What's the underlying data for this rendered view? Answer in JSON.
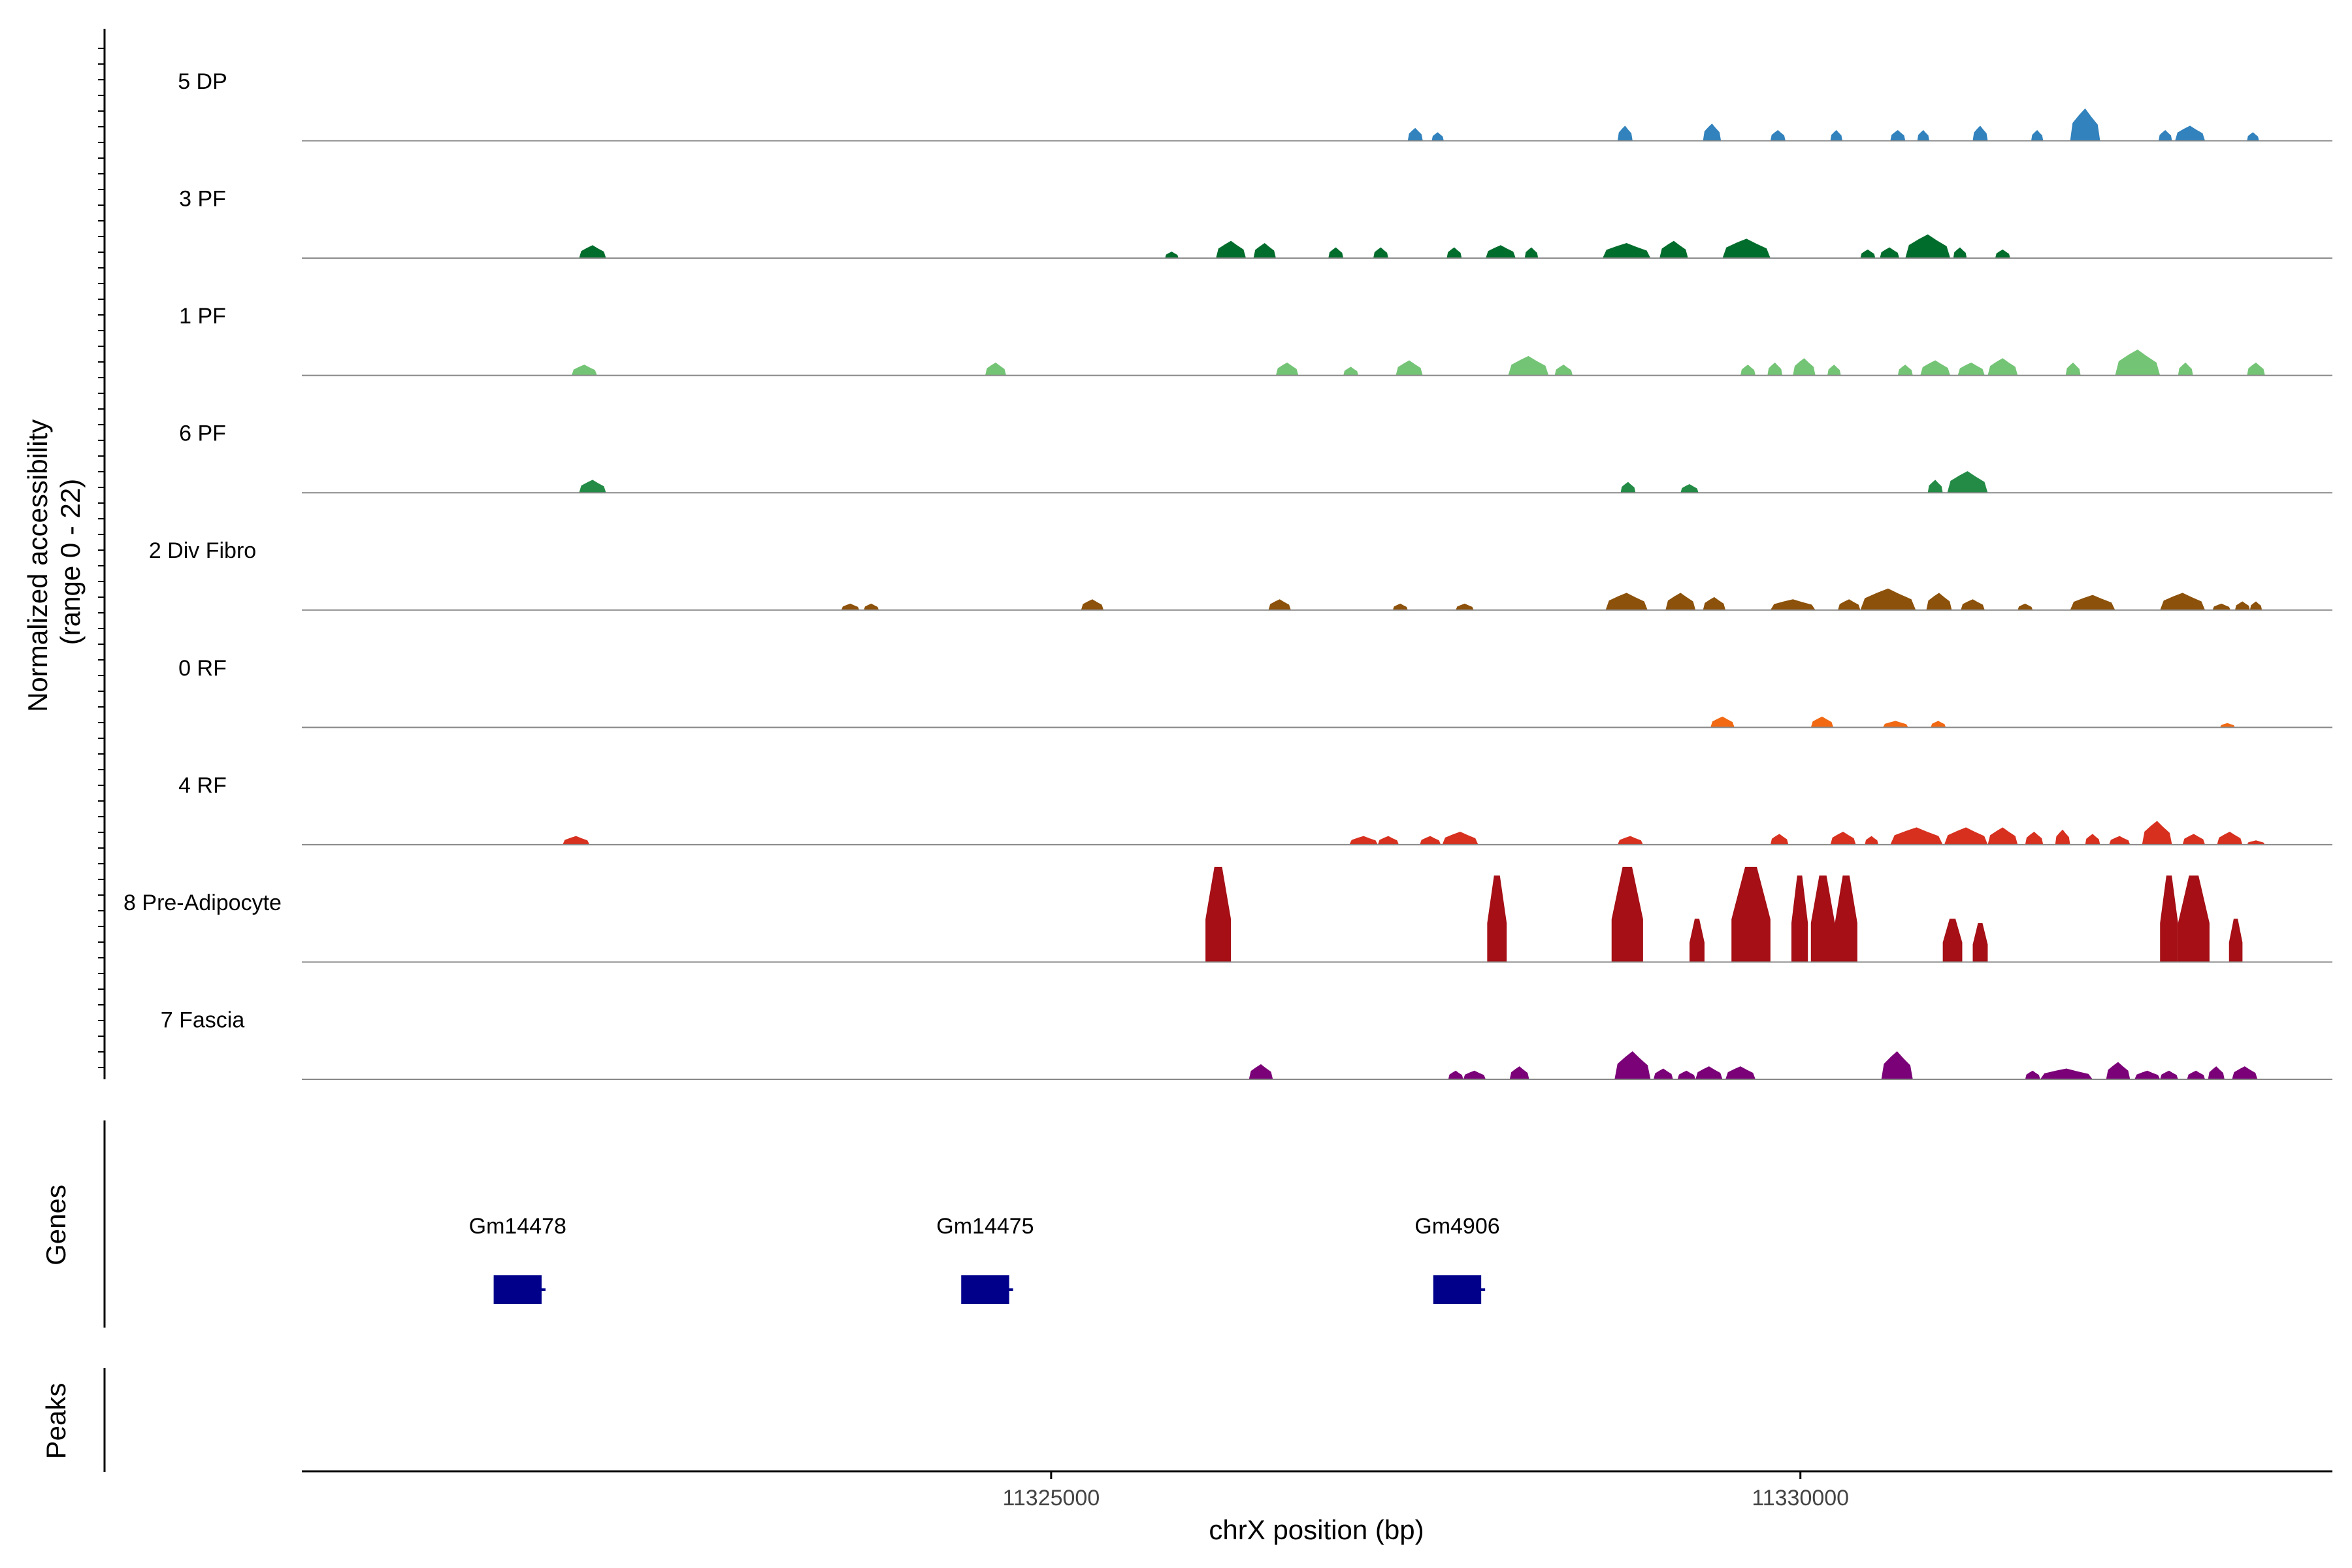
{
  "chart_data": {
    "type": "area",
    "ylabel_line1": "Normalized accessibility",
    "ylabel_line2": "(range 0 - 22)",
    "ylim": [
      0,
      22
    ],
    "xlabel": "chrX position (bp)",
    "xlim": [
      11320000,
      11333550
    ],
    "x_ticks": [
      {
        "value": 11325000,
        "label": "11325000"
      },
      {
        "value": 11330000,
        "label": "11330000"
      }
    ],
    "tracks": [
      {
        "name": "5 DP",
        "color": "#3182bd",
        "peaks": [
          [
            11327380,
            11327480,
            3
          ],
          [
            11327540,
            11327620,
            2
          ],
          [
            11328780,
            11328880,
            3.5
          ],
          [
            11329350,
            11329470,
            4
          ],
          [
            11329800,
            11329900,
            2.5
          ],
          [
            11330200,
            11330280,
            2.5
          ],
          [
            11330600,
            11330700,
            2.5
          ],
          [
            11330780,
            11330860,
            2.5
          ],
          [
            11331150,
            11331250,
            3.5
          ],
          [
            11331540,
            11331620,
            2.5
          ],
          [
            11331800,
            11332000,
            7.5
          ],
          [
            11332390,
            11332480,
            2.5
          ],
          [
            11332500,
            11332700,
            3.5
          ],
          [
            11332980,
            11333060,
            2
          ]
        ]
      },
      {
        "name": "3 PF",
        "color": "#006d2c",
        "peaks": [
          [
            11321850,
            11322030,
            3
          ],
          [
            11325760,
            11325850,
            1.5
          ],
          [
            11326100,
            11326300,
            4
          ],
          [
            11326350,
            11326500,
            3.5
          ],
          [
            11326850,
            11326950,
            2.5
          ],
          [
            11327150,
            11327250,
            2.5
          ],
          [
            11327640,
            11327740,
            2.5
          ],
          [
            11327900,
            11328100,
            3
          ],
          [
            11328160,
            11328250,
            2.5
          ],
          [
            11328680,
            11329000,
            3.5
          ],
          [
            11329060,
            11329250,
            4
          ],
          [
            11329480,
            11329800,
            4.5
          ],
          [
            11330400,
            11330500,
            2
          ],
          [
            11330530,
            11330660,
            2.5
          ],
          [
            11330700,
            11331000,
            5.5
          ],
          [
            11331020,
            11331110,
            2.5
          ],
          [
            11331300,
            11331400,
            2
          ]
        ]
      },
      {
        "name": "1 PF",
        "color": "#74c476",
        "peaks": [
          [
            11321800,
            11321970,
            2.5
          ],
          [
            11324560,
            11324700,
            3
          ],
          [
            11326500,
            11326650,
            3
          ],
          [
            11326950,
            11327050,
            2
          ],
          [
            11327300,
            11327480,
            3.5
          ],
          [
            11328050,
            11328320,
            4.5
          ],
          [
            11328360,
            11328480,
            2.5
          ],
          [
            11329600,
            11329700,
            2.5
          ],
          [
            11329780,
            11329880,
            3
          ],
          [
            11329950,
            11330100,
            4
          ],
          [
            11330180,
            11330270,
            2.5
          ],
          [
            11330650,
            11330750,
            2.5
          ],
          [
            11330800,
            11331000,
            3.5
          ],
          [
            11331050,
            11331230,
            3
          ],
          [
            11331250,
            11331450,
            4
          ],
          [
            11331770,
            11331870,
            3
          ],
          [
            11332100,
            11332400,
            6
          ],
          [
            11332520,
            11332620,
            3
          ],
          [
            11332980,
            11333100,
            3
          ]
        ]
      },
      {
        "name": "6 PF",
        "color": "#238b45",
        "peaks": [
          [
            11321850,
            11322030,
            3
          ],
          [
            11328800,
            11328900,
            2.5
          ],
          [
            11329200,
            11329320,
            2
          ],
          [
            11330850,
            11330950,
            3
          ],
          [
            11330980,
            11331250,
            5
          ]
        ]
      },
      {
        "name": "2 Div Fibro",
        "color": "#8c510a",
        "peaks": [
          [
            11323600,
            11323720,
            1.5
          ],
          [
            11323750,
            11323850,
            1.5
          ],
          [
            11325200,
            11325350,
            2.5
          ],
          [
            11326450,
            11326600,
            2.5
          ],
          [
            11327280,
            11327380,
            1.5
          ],
          [
            11327700,
            11327820,
            1.5
          ],
          [
            11328700,
            11328980,
            4
          ],
          [
            11329100,
            11329300,
            4
          ],
          [
            11329350,
            11329500,
            3
          ],
          [
            11329800,
            11330100,
            2.5
          ],
          [
            11330250,
            11330400,
            2.5
          ],
          [
            11330400,
            11330770,
            5
          ],
          [
            11330840,
            11331010,
            4
          ],
          [
            11331070,
            11331230,
            2.5
          ],
          [
            11331450,
            11331550,
            1.5
          ],
          [
            11331800,
            11332100,
            3.5
          ],
          [
            11332400,
            11332700,
            4
          ],
          [
            11332750,
            11332870,
            1.5
          ],
          [
            11332900,
            11333000,
            2
          ],
          [
            11333000,
            11333080,
            2
          ]
        ]
      },
      {
        "name": "0 RF",
        "color": "#f16913",
        "peaks": [
          [
            11329400,
            11329560,
            2.5
          ],
          [
            11330070,
            11330220,
            2.5
          ],
          [
            11330550,
            11330720,
            1.5
          ],
          [
            11330870,
            11330970,
            1.5
          ],
          [
            11332800,
            11332900,
            1
          ]
        ]
      },
      {
        "name": "4 RF",
        "color": "#d7301f",
        "peaks": [
          [
            11321740,
            11321920,
            2
          ],
          [
            11326990,
            11327180,
            2
          ],
          [
            11327180,
            11327320,
            2
          ],
          [
            11327460,
            11327600,
            2
          ],
          [
            11327610,
            11327850,
            3
          ],
          [
            11328780,
            11328950,
            2
          ],
          [
            11329800,
            11329920,
            2.5
          ],
          [
            11330200,
            11330370,
            3
          ],
          [
            11330430,
            11330520,
            2
          ],
          [
            11330600,
            11330950,
            4
          ],
          [
            11330960,
            11331250,
            4
          ],
          [
            11331250,
            11331450,
            4
          ],
          [
            11331500,
            11331620,
            3
          ],
          [
            11331700,
            11331800,
            3.5
          ],
          [
            11331900,
            11332000,
            2.5
          ],
          [
            11332060,
            11332200,
            2
          ],
          [
            11332280,
            11332480,
            5.5
          ],
          [
            11332550,
            11332700,
            2.5
          ],
          [
            11332780,
            11332950,
            3
          ],
          [
            11332980,
            11333100,
            1
          ]
        ]
      },
      {
        "name": "8 Pre-Adipocyte",
        "color": "#a50f15",
        "peaks": [
          [
            11326030,
            11326200,
            22
          ],
          [
            11327910,
            11328040,
            20
          ],
          [
            11328740,
            11328950,
            22
          ],
          [
            11329260,
            11329360,
            10
          ],
          [
            11329540,
            11329800,
            22
          ],
          [
            11329940,
            11330050,
            20
          ],
          [
            11330070,
            11330230,
            20
          ],
          [
            11330230,
            11330380,
            20
          ],
          [
            11330950,
            11331080,
            10
          ],
          [
            11331150,
            11331250,
            9
          ],
          [
            11332400,
            11332520,
            20
          ],
          [
            11332520,
            11332730,
            20
          ],
          [
            11332860,
            11332950,
            10
          ]
        ]
      },
      {
        "name": "7 Fascia",
        "color": "#7a0177",
        "peaks": [
          [
            11326320,
            11326480,
            3.5
          ],
          [
            11327650,
            11327750,
            2
          ],
          [
            11327750,
            11327900,
            2
          ],
          [
            11328060,
            11328190,
            3
          ],
          [
            11328760,
            11329000,
            6.5
          ],
          [
            11329020,
            11329150,
            2.5
          ],
          [
            11329180,
            11329300,
            2
          ],
          [
            11329300,
            11329480,
            3
          ],
          [
            11329500,
            11329700,
            3
          ],
          [
            11330540,
            11330750,
            6.5
          ],
          [
            11331500,
            11331600,
            2
          ],
          [
            11331600,
            11331950,
            2.5
          ],
          [
            11332040,
            11332200,
            4
          ],
          [
            11332230,
            11332400,
            2
          ],
          [
            11332400,
            11332520,
            2
          ],
          [
            11332580,
            11332700,
            2
          ],
          [
            11332720,
            11332830,
            3
          ],
          [
            11332880,
            11333050,
            3
          ]
        ]
      }
    ],
    "genes_label": "Genes",
    "genes": [
      {
        "name": "Gm14478",
        "start": 11321280,
        "end": 11321600
      },
      {
        "name": "Gm14475",
        "start": 11324400,
        "end": 11324720
      },
      {
        "name": "Gm4906",
        "start": 11327550,
        "end": 11327870
      }
    ],
    "peaks_label": "Peaks"
  }
}
